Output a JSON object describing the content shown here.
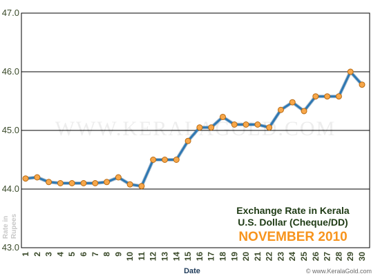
{
  "watermark": "WWW.KERALAGOLD.COM",
  "credit": "© www.KeralaGold.com",
  "chart_data": {
    "type": "line",
    "title_lines": [
      "Exchange Rate in Kerala",
      "U.S. Dollar (Cheque/DD)"
    ],
    "subtitle": "NOVEMBER 2010",
    "xlabel": "Date",
    "ylabel": "Rate in Rupees",
    "ylim": [
      43.0,
      47.0
    ],
    "yticks": [
      "43.0",
      "44.0",
      "45.0",
      "46.0",
      "47.0"
    ],
    "x": [
      1,
      2,
      3,
      4,
      5,
      6,
      7,
      8,
      9,
      10,
      11,
      12,
      13,
      14,
      15,
      16,
      17,
      18,
      19,
      20,
      21,
      22,
      23,
      24,
      25,
      26,
      27,
      28,
      29,
      30
    ],
    "series": [
      {
        "values": [
          44.18,
          44.2,
          44.12,
          44.1,
          44.1,
          44.1,
          44.1,
          44.12,
          44.2,
          44.08,
          44.05,
          44.5,
          44.5,
          44.5,
          44.82,
          45.05,
          45.05,
          45.23,
          45.1,
          45.1,
          45.1,
          45.05,
          45.35,
          45.48,
          45.33,
          45.58,
          45.58,
          45.58,
          46.0,
          45.78
        ]
      }
    ],
    "grid": true,
    "line_color": "#2e78b3",
    "marker_color": "#f7a74a"
  }
}
